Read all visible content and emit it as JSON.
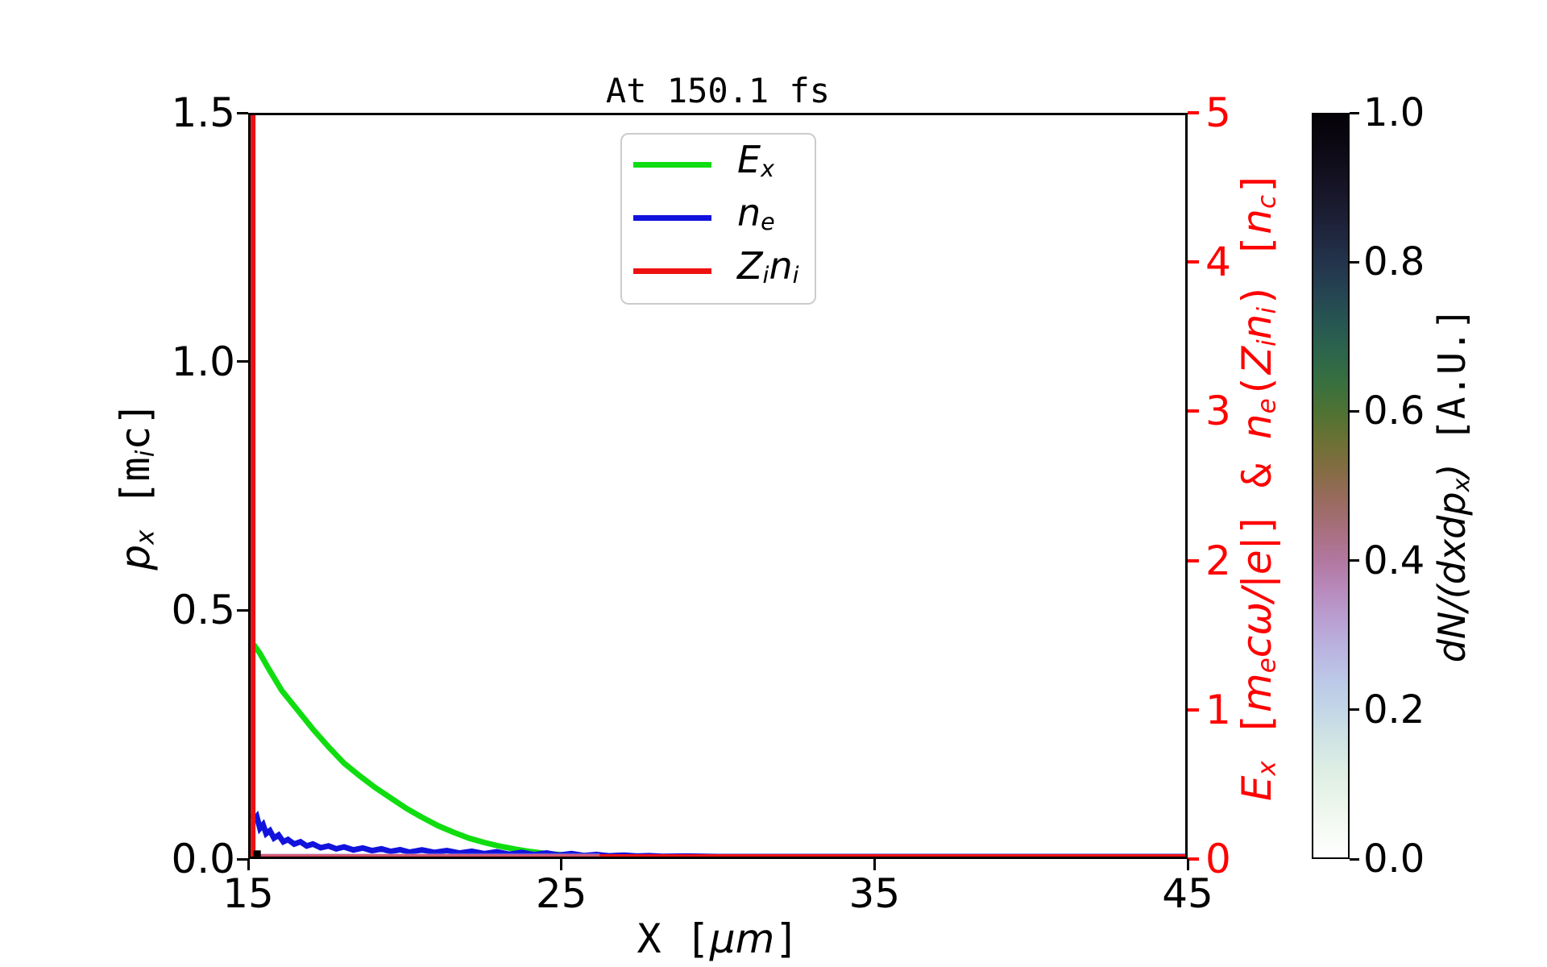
{
  "figure": {
    "title": "At 150.1 fs",
    "background": "#ffffff"
  },
  "chart_data": {
    "type": "line+heatmap",
    "title": "At 150.1 fs",
    "grid": false,
    "x_axis": {
      "lim": [
        15,
        45
      ],
      "label_text": "X [um]",
      "label_segments": [
        {
          "t": "X [",
          "s": "m"
        },
        {
          "t": "μm",
          "s": "i"
        },
        {
          "t": "]",
          "s": "m"
        }
      ],
      "ticks": [
        {
          "v": 15,
          "label": "15"
        },
        {
          "v": 25,
          "label": "25"
        },
        {
          "v": 35,
          "label": "35"
        },
        {
          "v": 45,
          "label": "45"
        }
      ]
    },
    "y_left": {
      "lim": [
        0,
        1.5
      ],
      "color": "#000000",
      "label_text": "p_x [m_i c]",
      "label_segments": [
        {
          "t": "p",
          "s": "i"
        },
        {
          "t": "x",
          "s": "is"
        },
        {
          "t": " [m",
          "s": "m"
        },
        {
          "t": "i",
          "s": "is"
        },
        {
          "t": "c]",
          "s": "m"
        }
      ],
      "ticks": [
        {
          "v": 0.0,
          "label": "0.0"
        },
        {
          "v": 0.5,
          "label": "0.5"
        },
        {
          "v": 1.0,
          "label": "1.0"
        },
        {
          "v": 1.5,
          "label": "1.5"
        }
      ]
    },
    "y_right": {
      "lim": [
        0,
        5
      ],
      "color": "#ff0000",
      "label_text": "E_x [m_e c w/|e|] & n_e(Z_i n_i) [n_c]",
      "label_segments": [
        {
          "t": "E",
          "s": "i"
        },
        {
          "t": "x",
          "s": "is"
        },
        {
          "t": " [",
          "s": "m"
        },
        {
          "t": "m",
          "s": "i"
        },
        {
          "t": "e",
          "s": "is"
        },
        {
          "t": "cω/|e|",
          "s": "i"
        },
        {
          "t": "] & ",
          "s": "m"
        },
        {
          "t": "n",
          "s": "i"
        },
        {
          "t": "e",
          "s": "is"
        },
        {
          "t": "(",
          "s": "m"
        },
        {
          "t": "Z",
          "s": "i"
        },
        {
          "t": "i",
          "s": "is"
        },
        {
          "t": "n",
          "s": "i"
        },
        {
          "t": "i",
          "s": "is"
        },
        {
          "t": ") [",
          "s": "m"
        },
        {
          "t": "n",
          "s": "i"
        },
        {
          "t": "c",
          "s": "is"
        },
        {
          "t": "]",
          "s": "m"
        }
      ],
      "ticks": [
        {
          "v": 0,
          "label": "0"
        },
        {
          "v": 1,
          "label": "1"
        },
        {
          "v": 2,
          "label": "2"
        },
        {
          "v": 3,
          "label": "3"
        },
        {
          "v": 4,
          "label": "4"
        },
        {
          "v": 5,
          "label": "5"
        }
      ]
    },
    "legend": {
      "position": "upper center",
      "entries": [
        {
          "name": "Ex",
          "color": "#10dd10",
          "label_segments": [
            {
              "t": "E",
              "s": "i"
            },
            {
              "t": "x",
              "s": "is"
            }
          ]
        },
        {
          "name": "ne",
          "color": "#1212dd",
          "label_segments": [
            {
              "t": "n",
              "s": "i"
            },
            {
              "t": "e",
              "s": "is"
            }
          ]
        },
        {
          "name": "Zini",
          "color": "#ee1111",
          "label_segments": [
            {
              "t": "Z",
              "s": "i"
            },
            {
              "t": "i",
              "s": "is"
            },
            {
              "t": "n",
              "s": "i"
            },
            {
              "t": "i",
              "s": "is"
            }
          ]
        }
      ]
    },
    "series": [
      {
        "name": "Ex",
        "color": "#10dd10",
        "width": 7,
        "axis": "right",
        "points": [
          [
            15.1,
            1.43
          ],
          [
            15.3,
            1.37
          ],
          [
            15.6,
            1.26
          ],
          [
            16.0,
            1.12
          ],
          [
            16.5,
            0.99
          ],
          [
            17.0,
            0.86
          ],
          [
            17.5,
            0.74
          ],
          [
            18.0,
            0.63
          ],
          [
            18.5,
            0.545
          ],
          [
            19.0,
            0.465
          ],
          [
            19.5,
            0.395
          ],
          [
            20.0,
            0.325
          ],
          [
            20.5,
            0.265
          ],
          [
            21.0,
            0.21
          ],
          [
            21.5,
            0.165
          ],
          [
            22.0,
            0.125
          ],
          [
            22.5,
            0.095
          ],
          [
            23.0,
            0.07
          ],
          [
            23.5,
            0.05
          ],
          [
            24.0,
            0.033
          ],
          [
            24.5,
            0.02
          ],
          [
            25.0,
            0.012
          ],
          [
            25.5,
            0.007
          ],
          [
            26.0,
            0.004
          ],
          [
            27.0,
            0.001
          ],
          [
            28.0,
            0
          ],
          [
            45,
            0
          ]
        ]
      },
      {
        "name": "ne",
        "color": "#1212dd",
        "width": 7,
        "axis": "right",
        "points": [
          [
            15.05,
            0.29
          ],
          [
            15.12,
            0.25
          ],
          [
            15.2,
            0.27
          ],
          [
            15.3,
            0.19
          ],
          [
            15.4,
            0.215
          ],
          [
            15.5,
            0.155
          ],
          [
            15.62,
            0.175
          ],
          [
            15.75,
            0.125
          ],
          [
            15.9,
            0.145
          ],
          [
            16.05,
            0.1
          ],
          [
            16.2,
            0.115
          ],
          [
            16.4,
            0.085
          ],
          [
            16.6,
            0.1
          ],
          [
            16.8,
            0.072
          ],
          [
            17.0,
            0.085
          ],
          [
            17.25,
            0.06
          ],
          [
            17.5,
            0.072
          ],
          [
            17.75,
            0.052
          ],
          [
            18.0,
            0.065
          ],
          [
            18.3,
            0.045
          ],
          [
            18.6,
            0.058
          ],
          [
            18.9,
            0.04
          ],
          [
            19.2,
            0.052
          ],
          [
            19.5,
            0.035
          ],
          [
            19.8,
            0.047
          ],
          [
            20.1,
            0.03
          ],
          [
            20.5,
            0.045
          ],
          [
            20.9,
            0.028
          ],
          [
            21.3,
            0.04
          ],
          [
            21.7,
            0.024
          ],
          [
            22.1,
            0.036
          ],
          [
            22.5,
            0.02
          ],
          [
            22.9,
            0.032
          ],
          [
            23.3,
            0.016
          ],
          [
            23.7,
            0.028
          ],
          [
            24.1,
            0.013
          ],
          [
            24.5,
            0.024
          ],
          [
            24.9,
            0.01
          ],
          [
            25.3,
            0.02
          ],
          [
            25.7,
            0.007
          ],
          [
            26.1,
            0.014
          ],
          [
            26.5,
            0.005
          ],
          [
            27.0,
            0.01
          ],
          [
            27.4,
            0.003
          ],
          [
            27.8,
            0.006
          ],
          [
            28.2,
            0.001
          ],
          [
            29,
            0.003
          ],
          [
            30,
            0
          ],
          [
            45,
            0
          ]
        ]
      },
      {
        "name": "Zini",
        "color": "#ee1111",
        "width": 6,
        "axis": "right",
        "points": [
          [
            15.08,
            5
          ],
          [
            15.08,
            0
          ],
          [
            45,
            0
          ]
        ]
      }
    ],
    "heatmap": {
      "label_text": "dN/(dxdp_x) [A.U.]",
      "label_segments": [
        {
          "t": "dN/(dxdp",
          "s": "i"
        },
        {
          "t": "x",
          "s": "is"
        },
        {
          "t": ")",
          "s": "i"
        },
        {
          "t": " [A.U.]",
          "s": "m"
        }
      ],
      "lim": [
        0.0,
        1.0
      ],
      "ticks": [
        {
          "v": 0.0,
          "label": "0.0"
        },
        {
          "v": 0.2,
          "label": "0.2"
        },
        {
          "v": 0.4,
          "label": "0.4"
        },
        {
          "v": 0.6,
          "label": "0.6"
        },
        {
          "v": 0.8,
          "label": "0.8"
        },
        {
          "v": 1.0,
          "label": "1.0"
        }
      ],
      "gradient_stops": [
        [
          0.0,
          "#ffffff"
        ],
        [
          0.04,
          "#f5faf4"
        ],
        [
          0.08,
          "#e9f4ea"
        ],
        [
          0.12,
          "#dcede4"
        ],
        [
          0.16,
          "#cfe3e4"
        ],
        [
          0.2,
          "#c2d6e7"
        ],
        [
          0.24,
          "#bcc7e7"
        ],
        [
          0.28,
          "#bab4e0"
        ],
        [
          0.32,
          "#ba9fd2"
        ],
        [
          0.36,
          "#b88abc"
        ],
        [
          0.4,
          "#b2779f"
        ],
        [
          0.44,
          "#a86f7f"
        ],
        [
          0.48,
          "#996b5f"
        ],
        [
          0.52,
          "#856c44"
        ],
        [
          0.56,
          "#6c7134"
        ],
        [
          0.6,
          "#4e7233"
        ],
        [
          0.64,
          "#38703f"
        ],
        [
          0.68,
          "#2c654c"
        ],
        [
          0.72,
          "#275652"
        ],
        [
          0.76,
          "#254452"
        ],
        [
          0.8,
          "#23344c"
        ],
        [
          0.84,
          "#1f263e"
        ],
        [
          0.88,
          "#1a1a2e"
        ],
        [
          0.92,
          "#131020"
        ],
        [
          0.96,
          "#0c0813"
        ],
        [
          1.0,
          "#050207"
        ]
      ],
      "features": {
        "dark_cell": {
          "x": 15.2,
          "px": 0.02,
          "value": 1.0,
          "color": "#000000"
        },
        "low_band": {
          "x_range": [
            15.3,
            26.2
          ],
          "px": 0.012,
          "value": 0.3,
          "color": "#b7a6da"
        }
      }
    }
  }
}
